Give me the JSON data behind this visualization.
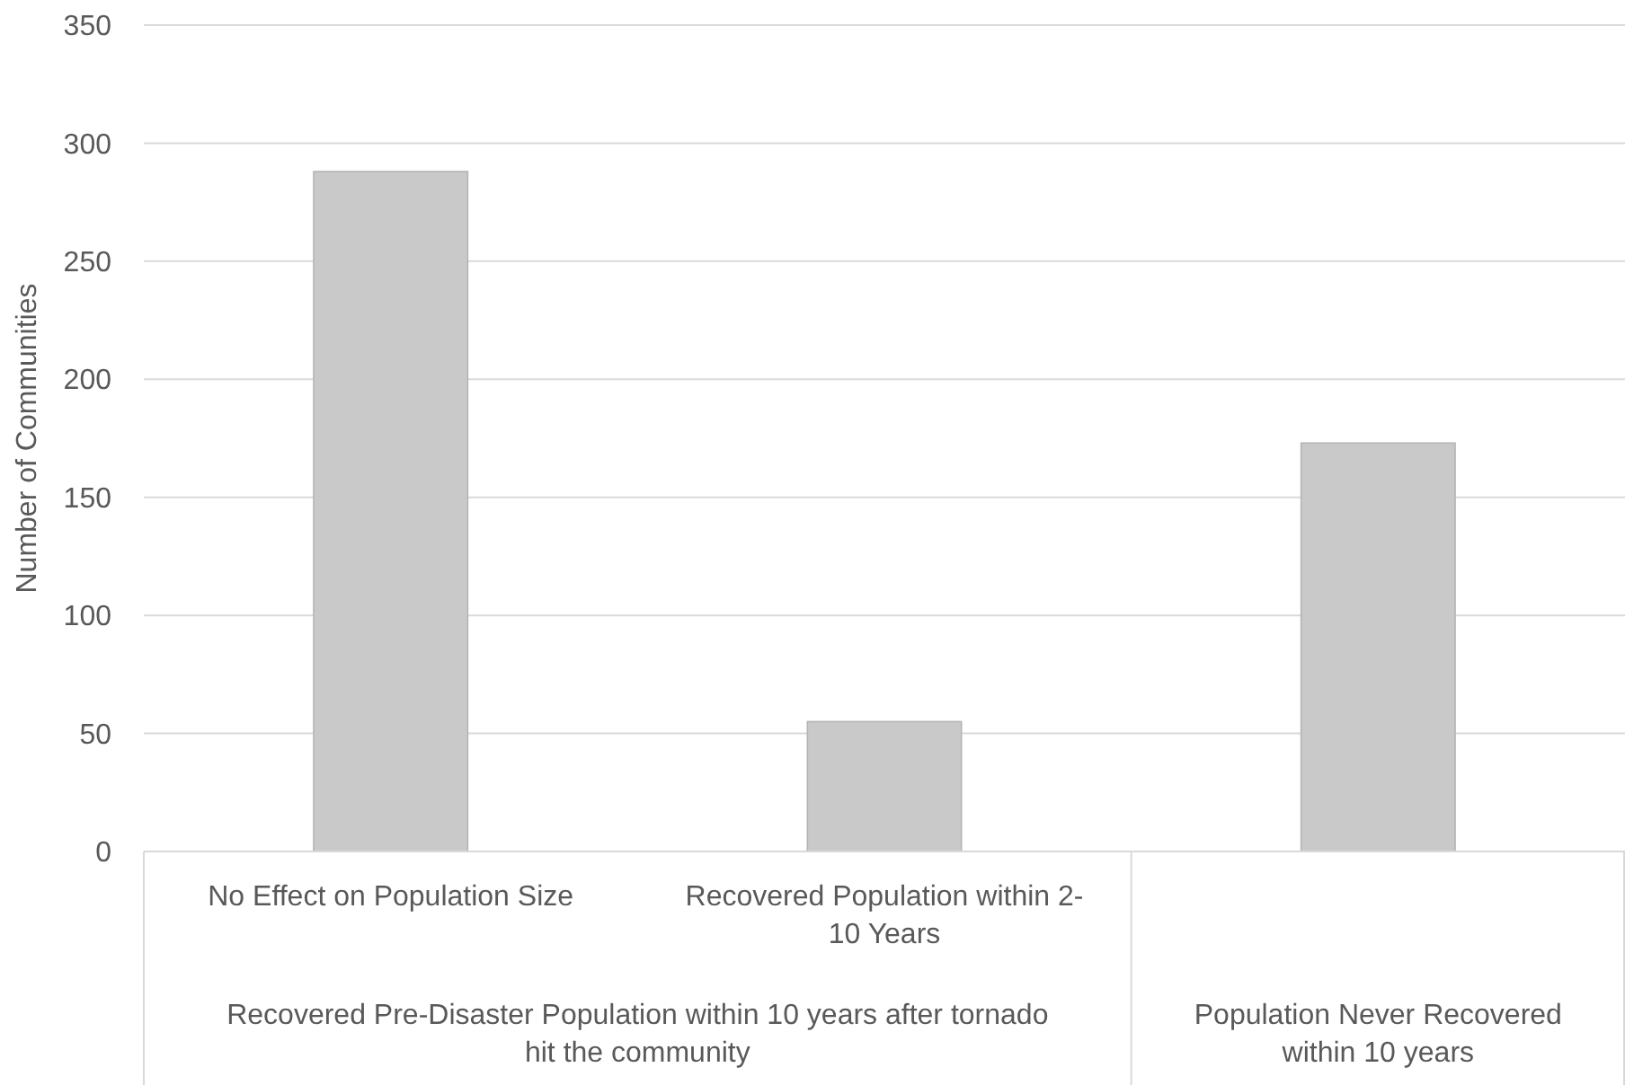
{
  "chart_data": {
    "type": "bar",
    "ylabel": "Number of Communities",
    "categories": [
      "No Effect on Population Size",
      "Recovered Population within 2-10 Years",
      null
    ],
    "values": [
      288,
      55,
      173
    ],
    "color": "#c9c9c9",
    "ylim": [
      0,
      350
    ],
    "yticks": [
      0,
      50,
      100,
      150,
      200,
      250,
      300,
      350
    ],
    "grid": "y",
    "annotations": [
      "Recovered Pre-Disaster Population within 10 years after tornado hit the community",
      "Population Never Recovered within 10 years"
    ]
  }
}
